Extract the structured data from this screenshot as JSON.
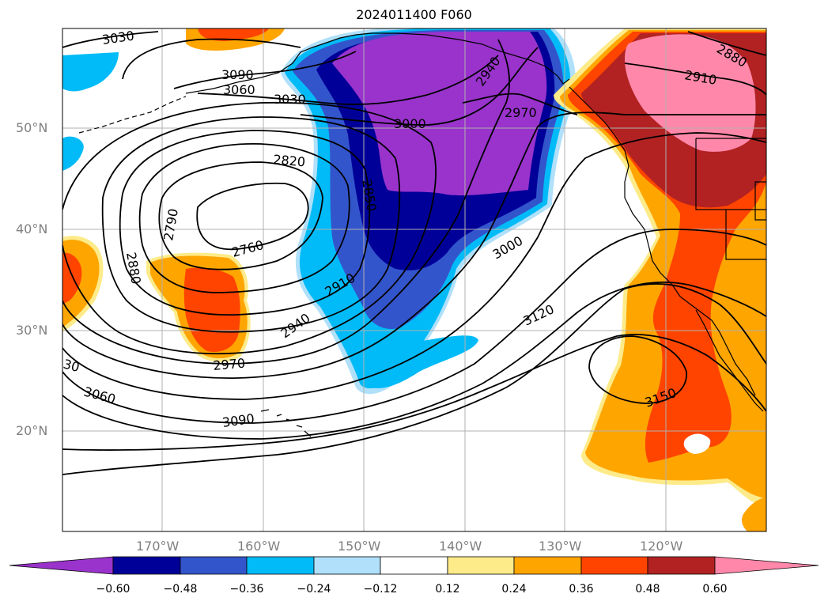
{
  "title": "2024011400 F060",
  "lat_labels": [
    "50°N",
    "40°N",
    "30°N",
    "20°N"
  ],
  "lon_labels": [
    "170°W",
    "160°W",
    "150°W",
    "140°W",
    "130°W",
    "120°W"
  ],
  "contour_labels": [
    "3030",
    "3090",
    "3060",
    "3030",
    "3000",
    "2940",
    "2970",
    "2910",
    "2880",
    "2820",
    "2850",
    "2790",
    "2760",
    "2880",
    "2910",
    "3000",
    "2940",
    "3120",
    "2970",
    "3150",
    "30",
    "3060",
    "3090"
  ],
  "colorbar": {
    "ticks": [
      "−0.60",
      "−0.48",
      "−0.36",
      "−0.24",
      "−0.12",
      "0.12",
      "0.24",
      "0.36",
      "0.48",
      "0.60"
    ],
    "colors": [
      "#9933cc",
      "#000099",
      "#3355cc",
      "#00bbf7",
      "#b0e0fa",
      "#ffffff",
      "#fdeb8a",
      "#ffa500",
      "#ff4400",
      "#b22222",
      "#ff88aa"
    ]
  }
}
